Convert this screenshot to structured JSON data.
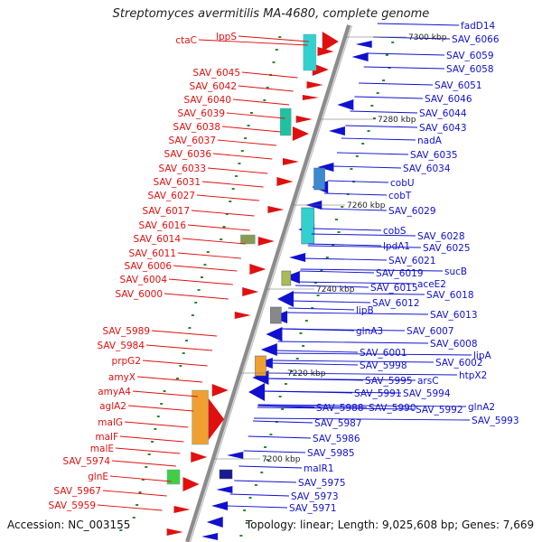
{
  "title": "Streptomyces avermitilis MA-4680, complete genome",
  "accession": "Accession: NC_003155",
  "topology": "Topology: linear; Length: 9,025,608 bp; Genes: 7,669",
  "colors": {
    "forward": "#e01010",
    "reverse": "#1010d0",
    "backbone": "#8c8c8c",
    "tick": "#2a8a2a"
  },
  "kbp_markers": [
    "7300 kbp",
    "7280 kbp",
    "7260 kbp",
    "7240 kbp",
    "7220 kbp",
    "7200 kbp"
  ],
  "left_genes": [
    "ctaC",
    "lppS",
    "SAV_6045",
    "SAV_6042",
    "SAV_6040",
    "SAV_6039",
    "SAV_6038",
    "SAV_6037",
    "SAV_6036",
    "SAV_6033",
    "SAV_6031",
    "SAV_6027",
    "SAV_6017",
    "SAV_6016",
    "SAV_6014",
    "SAV_6011",
    "SAV_6006",
    "SAV_6004",
    "SAV_6000",
    "SAV_5989",
    "SAV_5984",
    "prpG2",
    "amyX",
    "amyA4",
    "aglA2",
    "malG",
    "malF",
    "malE",
    "SAV_5974",
    "glnE",
    "SAV_5967",
    "SAV_5959"
  ],
  "right_genes": [
    "fadD14",
    "SAV_6066",
    "SAV_6059",
    "SAV_6058",
    "SAV_6051",
    "SAV_6046",
    "SAV_6044",
    "SAV_6043",
    "nadA",
    "SAV_6035",
    "SAV_6034",
    "cobU",
    "cobT",
    "SAV_6029",
    "cobS",
    "SAV_6028",
    "lpdA1",
    "SAV_6025",
    "SAV_6021",
    "sucB",
    "SAV_6019",
    "aceE2",
    "SAV_6015",
    "SAV_6018",
    "SAV_6012",
    "lipB",
    "SAV_6013",
    "glnA3",
    "SAV_6007",
    "SAV_6008",
    "SAV_6001",
    "lipA",
    "SAV_5998",
    "SAV_6002",
    "htpX2",
    "SAV_5995",
    "arsC",
    "SAV_5991",
    "SAV_5994",
    "SAV_5988",
    "SAV_5990",
    "SAV_5992",
    "glnA2",
    "SAV_5993",
    "SAV_5987",
    "SAV_5986",
    "SAV_5985",
    "malR1",
    "SAV_5975",
    "SAV_5973",
    "SAV_5971"
  ]
}
